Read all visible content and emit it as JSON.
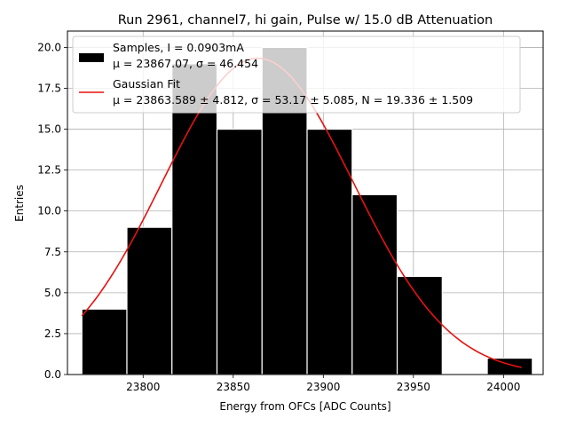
{
  "chart_data": {
    "type": "bar",
    "title": "Run 2961, channel7, hi gain, Pulse w/ 15.0 dB Attenuation",
    "xlabel": "Energy from OFCs [ADC Counts]",
    "ylabel": "Entries",
    "xlim": [
      23758,
      24022
    ],
    "ylim": [
      0,
      21
    ],
    "grid": true,
    "legend_position": "top-left",
    "xticks": [
      "23800",
      "23850",
      "23900",
      "23950",
      "24000"
    ],
    "xtick_values": [
      23800,
      23850,
      23900,
      23950,
      24000
    ],
    "yticks": [
      "0.0",
      "2.5",
      "5.0",
      "7.5",
      "10.0",
      "12.5",
      "15.0",
      "17.5",
      "20.0"
    ],
    "ytick_values": [
      0,
      2.5,
      5,
      7.5,
      10,
      12.5,
      15,
      17.5,
      20
    ],
    "bins": {
      "edges": [
        23766,
        23791,
        23816,
        23841,
        23866,
        23891,
        23916,
        23941,
        23966,
        23991,
        24016
      ],
      "counts": [
        4,
        9,
        19,
        15,
        20,
        15,
        11,
        6,
        0,
        1
      ]
    },
    "series": [
      {
        "name": "Samples, I = 0.0903mA",
        "name_line2": "μ = 23867.07, σ = 46.454",
        "kind": "histogram",
        "color": "#000000"
      },
      {
        "name": "Gaussian Fit",
        "name_line2": "μ = 23863.589 ± 4.812, σ = 53.17 ± 5.085, N = 19.336 ± 1.509",
        "kind": "line",
        "color": "#e8110f",
        "mu": 23863.589,
        "sigma": 53.17,
        "N": 19.336,
        "x_range": [
          23766,
          24010
        ]
      }
    ]
  }
}
